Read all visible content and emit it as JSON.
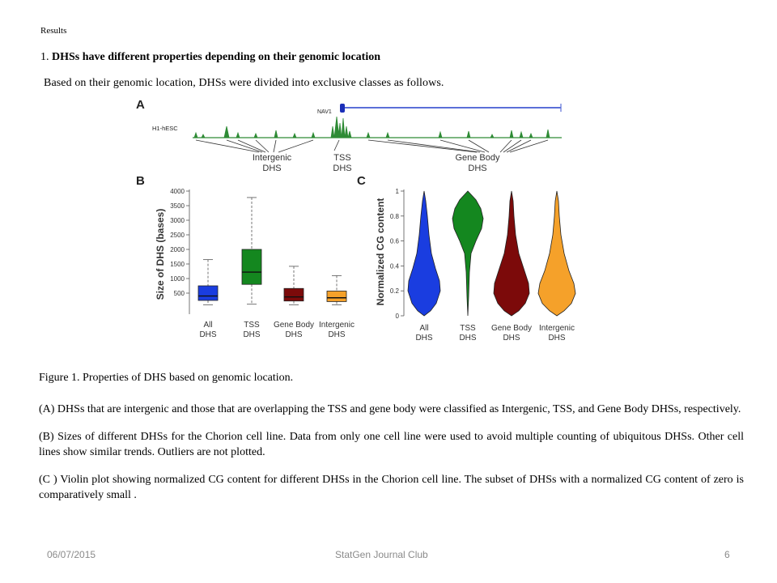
{
  "section_label": "Results",
  "heading": {
    "number": "1.",
    "acronym": "DHS",
    "rest": "s have different properties depending on their genomic location"
  },
  "intro": "Based on their genomic location, DHSs were divided into exclusive classes as follows.",
  "figure": {
    "panel_a": {
      "letter": "A",
      "gene_label": "NAV1",
      "track_label": "H1-hESC",
      "intergenic_label": [
        "Intergenic",
        "DHS"
      ],
      "tss_label": [
        "TSS",
        "DHS"
      ],
      "genebody_label": [
        "Gene Body",
        "DHS"
      ]
    },
    "panel_b": {
      "letter": "B",
      "ylabel": "Size of DHS (bases)",
      "ticks": [
        "500",
        "1000",
        "1500",
        "2000",
        "2500",
        "3000",
        "3500",
        "4000"
      ],
      "categories": [
        [
          "All",
          "DHS"
        ],
        [
          "TSS",
          "DHS"
        ],
        [
          "Gene Body",
          "DHS"
        ],
        [
          "Intergenic",
          "DHS"
        ]
      ]
    },
    "panel_c": {
      "letter": "C",
      "ylabel": "Normalized CG content",
      "ticks": [
        "0",
        "0.2",
        "0.4",
        "0.6",
        "0.8",
        "1"
      ],
      "categories": [
        [
          "All",
          "DHS"
        ],
        [
          "TSS",
          "DHS"
        ],
        [
          "Gene Body",
          "DHS"
        ],
        [
          "Intergenic",
          "DHS"
        ]
      ]
    }
  },
  "chart_data": [
    {
      "type": "box",
      "ylabel": "Size of DHS (bases)",
      "ylim": [
        0,
        4000
      ],
      "categories": [
        "All DHS",
        "TSS DHS",
        "Gene Body DHS",
        "Intergenic DHS"
      ],
      "colors": [
        "#1a3de0",
        "#14871f",
        "#7c0a0a",
        "#f5a12a"
      ],
      "boxes": [
        {
          "min": 100,
          "q1": 250,
          "median": 400,
          "q3": 750,
          "max": 1650
        },
        {
          "min": 120,
          "q1": 800,
          "median": 1220,
          "q3": 2000,
          "max": 3780
        },
        {
          "min": 100,
          "q1": 230,
          "median": 370,
          "q3": 660,
          "max": 1420
        },
        {
          "min": 100,
          "q1": 210,
          "median": 340,
          "q3": 570,
          "max": 1100
        }
      ],
      "grid": false
    },
    {
      "type": "violin",
      "ylabel": "Normalized CG content",
      "ylim": [
        0,
        1
      ],
      "categories": [
        "All DHS",
        "TSS DHS",
        "Gene Body DHS",
        "Intergenic DHS"
      ],
      "colors": [
        "#1a3de0",
        "#14871f",
        "#7c0a0a",
        "#f5a12a"
      ],
      "ranges": [
        [
          0,
          1
        ],
        [
          0,
          1
        ],
        [
          0,
          1
        ],
        [
          0,
          1
        ]
      ],
      "modes": [
        0.25,
        0.75,
        0.25,
        0.23
      ],
      "grid": false
    }
  ],
  "captions": [
    "Figure 1. Properties of DHS based on genomic location.",
    "(A) DHSs that are intergenic and  those that are overlapping the TSS and gene body were classified as Intergenic, TSS, and Gene Body DHSs, respectively.",
    "(B) Sizes of different DHSs for the Chorion  cell line. Data from only one cell line were used to avoid multiple counting of ubiquitous DHSs. Other cell lines show similar trends. Outliers are not plotted.",
    "(C ) Violin plot showing normalized CG content for different  DHSs in the Chorion cell line. The subset of DHSs with a normalized CG content of zero is comparatively small ."
  ],
  "footer": {
    "date": "06/07/2015",
    "title": "StatGen Journal Club",
    "page": "6"
  }
}
